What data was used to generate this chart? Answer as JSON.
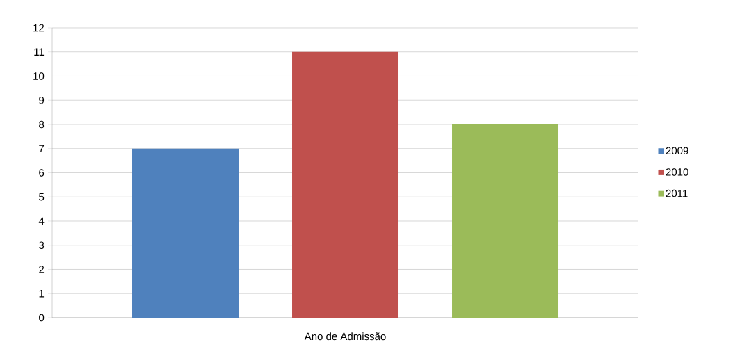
{
  "chart_data": {
    "type": "bar",
    "categories": [
      "Ano de Admissão"
    ],
    "series": [
      {
        "name": "2009",
        "color": "#4f81bd",
        "values": [
          7
        ]
      },
      {
        "name": "2010",
        "color": "#c0504d",
        "values": [
          11
        ]
      },
      {
        "name": "2011",
        "color": "#9bbb59",
        "values": [
          8
        ]
      }
    ],
    "ylim": [
      0,
      12
    ],
    "yticks": [
      0,
      1,
      2,
      3,
      4,
      5,
      6,
      7,
      8,
      9,
      10,
      11,
      12
    ],
    "grid": "y",
    "legend": "right"
  }
}
